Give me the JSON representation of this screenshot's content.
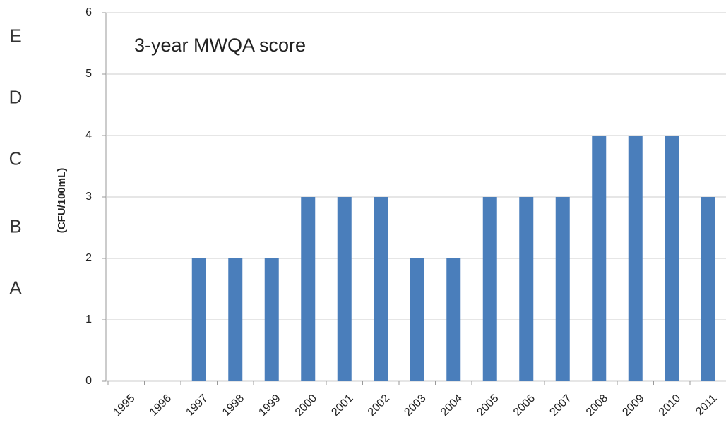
{
  "chart_data": {
    "type": "bar",
    "annotation": "3-year MWQA score",
    "y_axis_label": "(CFU/100mL)",
    "categories": [
      "1995",
      "1996",
      "1997",
      "1998",
      "1999",
      "2000",
      "2001",
      "2002",
      "2003",
      "2004",
      "2005",
      "2006",
      "2007",
      "2008",
      "2009",
      "2010",
      "2011"
    ],
    "values": [
      0,
      0,
      2,
      2,
      2,
      3,
      3,
      3,
      2,
      2,
      3,
      3,
      3,
      4,
      4,
      4,
      3
    ],
    "color": "#4a7ebb",
    "ylim": [
      0,
      6
    ],
    "yticks": [
      0,
      1,
      2,
      3,
      4,
      5,
      6
    ],
    "y2lim": [
      0,
      6
    ],
    "y2ticks": [
      {
        "value": 5.6,
        "label": "E"
      },
      {
        "value": 4.6,
        "label": "D"
      },
      {
        "value": 3.6,
        "label": "C"
      },
      {
        "value": 2.5,
        "label": "B"
      },
      {
        "value": 1.5,
        "label": "A"
      }
    ],
    "grid": true
  }
}
